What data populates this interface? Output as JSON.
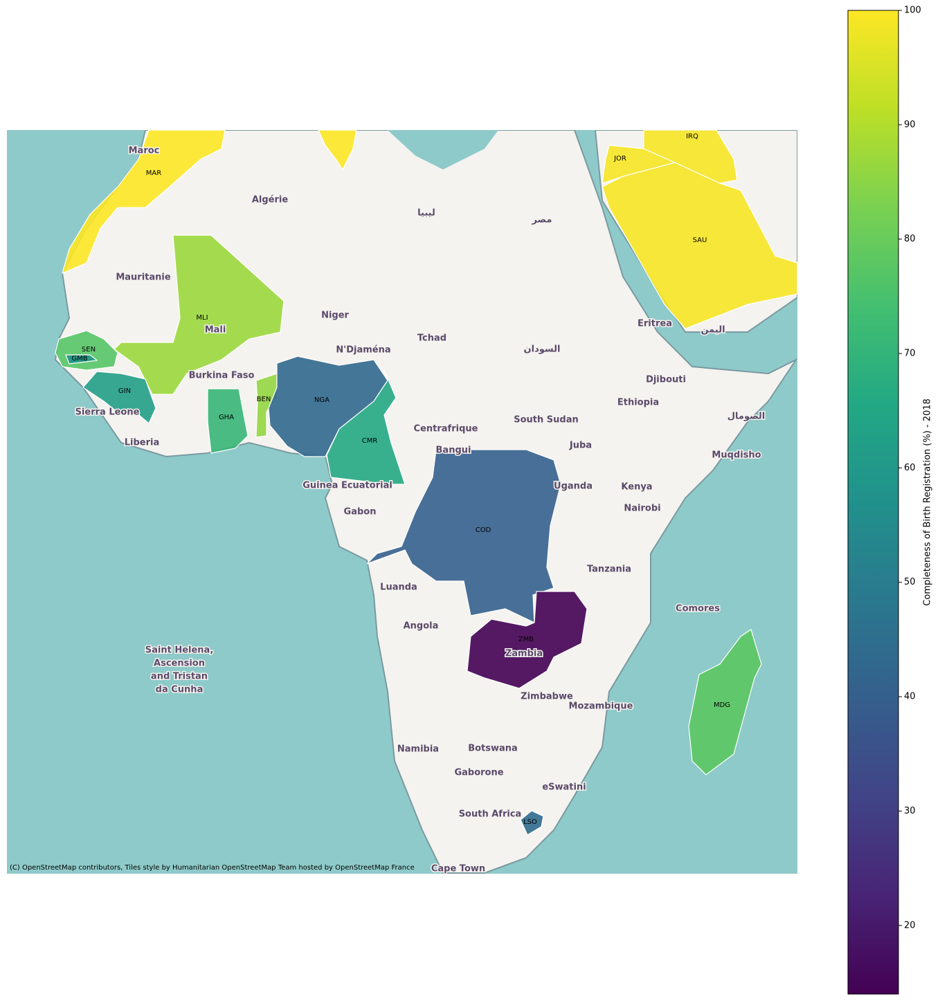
{
  "chart_data": {
    "type": "choropleth",
    "categories": [
      "MAR",
      null,
      "IRQ",
      "JOR",
      "SAU",
      "MLI",
      "SEN",
      "GMB",
      "GIN",
      "GHA",
      "BEN",
      "NGA",
      "CMR",
      "COD",
      "ZMB",
      "LSO",
      "MDG"
    ],
    "values": [
      100,
      100,
      99,
      99,
      99,
      87,
      77,
      58,
      62,
      71,
      86,
      43,
      66,
      40,
      14,
      44,
      78
    ],
    "colormap": "viridis",
    "clim": [
      14,
      100
    ],
    "cticks": [
      20,
      30,
      40,
      50,
      60,
      70,
      80,
      90,
      100
    ],
    "colorbar_label": "Completeness of Birth Registration (%) - 2018",
    "attribution": "(C) OpenStreetMap contributors, Tiles style by Humanitarian OpenStreetMap Team hosted by OpenStreetMap France",
    "place_labels": [
      "Maroc",
      "Algérie",
      "ليبيا",
      "مصر",
      "Mauritanie",
      "Niger",
      "Mali",
      "Tchad",
      "N'Djaména",
      "السودان",
      "Eritrea",
      "Burkina Faso",
      "Djibouti",
      "Ethiopia",
      "الصومال",
      "اليمن",
      "Sierra Leone",
      "Liberia",
      "Centrafrique",
      "South Sudan",
      "Bangui",
      "Juba",
      "Muqdisho",
      "Guinea Ecuatorial",
      "Uganda",
      "Kenya",
      "Gabon",
      "Nairobi",
      "Tanzania",
      "Luanda",
      "Comores",
      "Angola",
      "Zambia",
      "Saint Helena,",
      "Ascension",
      "and Tristan",
      "da Cunha",
      "Zimbabwe",
      "Mozambique",
      "Namibia",
      "Botswana",
      "Gaborone",
      "eSwatini",
      "South Africa",
      "Cape Town"
    ]
  }
}
